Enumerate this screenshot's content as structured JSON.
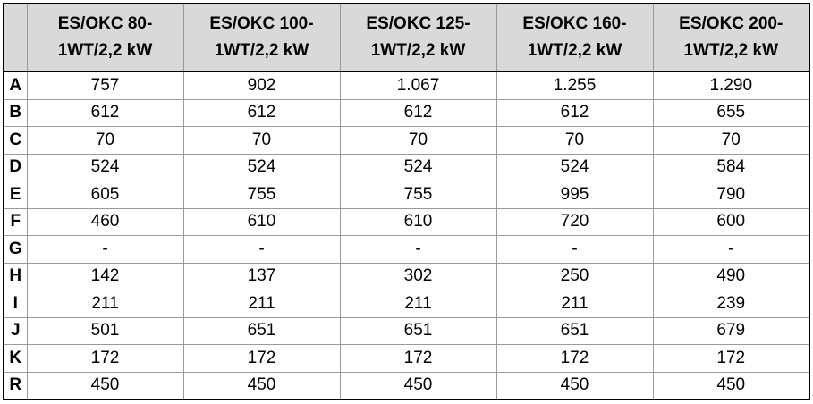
{
  "table": {
    "header": [
      "ES/OKC 80-1WT/2,2 kW",
      "ES/OKC 100-1WT/2,2 kW",
      "ES/OKC 125-1WT/2,2 kW",
      "ES/OKC 160-1WT/2,2 kW",
      "ES/OKC 200-1WT/2,2 kW"
    ],
    "rows": [
      [
        "A",
        "757",
        "902",
        "1.067",
        "1.255",
        "1.290"
      ],
      [
        "B",
        "612",
        "612",
        "612",
        "612",
        "655"
      ],
      [
        "C",
        "70",
        "70",
        "70",
        "70",
        "70"
      ],
      [
        "D",
        "524",
        "524",
        "524",
        "524",
        "584"
      ],
      [
        "E",
        "605",
        "755",
        "755",
        "995",
        "790"
      ],
      [
        "F",
        "460",
        "610",
        "610",
        "720",
        "600"
      ],
      [
        "G",
        "-",
        "-",
        "-",
        "-",
        "-"
      ],
      [
        "H",
        "142",
        "137",
        "302",
        "250",
        "490"
      ],
      [
        "I",
        "211",
        "211",
        "211",
        "211",
        "239"
      ],
      [
        "J",
        "501",
        "651",
        "651",
        "651",
        "679"
      ],
      [
        "K",
        "172",
        "172",
        "172",
        "172",
        "172"
      ],
      [
        "R",
        "450",
        "450",
        "450",
        "450",
        "450"
      ]
    ]
  }
}
